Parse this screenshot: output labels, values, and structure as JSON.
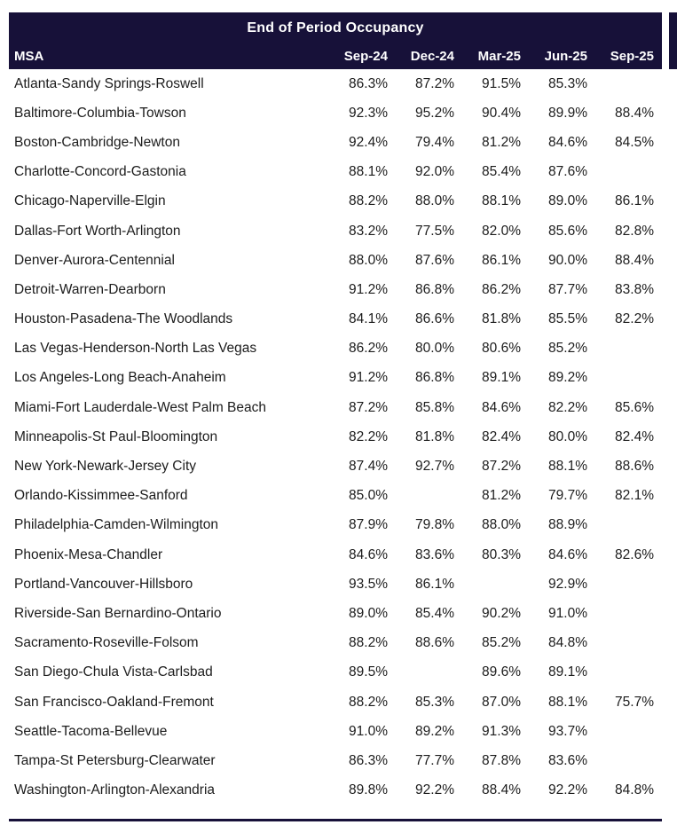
{
  "colors": {
    "header_bg": "#171139",
    "header_text": "#ffffff",
    "body_text": "#1c1c1c",
    "page_bg": "#ffffff"
  },
  "chart_data": {
    "type": "table",
    "title": "End of Period Occupancy",
    "columns": [
      "MSA",
      "Sep-24",
      "Dec-24",
      "Mar-25",
      "Jun-25",
      "Sep-25"
    ],
    "rows": [
      {
        "msa": "Atlanta-Sandy Springs-Roswell",
        "values": [
          "86.3%",
          "87.2%",
          "91.5%",
          "85.3%",
          ""
        ]
      },
      {
        "msa": "Baltimore-Columbia-Towson",
        "values": [
          "92.3%",
          "95.2%",
          "90.4%",
          "89.9%",
          "88.4%"
        ]
      },
      {
        "msa": "Boston-Cambridge-Newton",
        "values": [
          "92.4%",
          "79.4%",
          "81.2%",
          "84.6%",
          "84.5%"
        ]
      },
      {
        "msa": "Charlotte-Concord-Gastonia",
        "values": [
          "88.1%",
          "92.0%",
          "85.4%",
          "87.6%",
          ""
        ]
      },
      {
        "msa": "Chicago-Naperville-Elgin",
        "values": [
          "88.2%",
          "88.0%",
          "88.1%",
          "89.0%",
          "86.1%"
        ]
      },
      {
        "msa": "Dallas-Fort Worth-Arlington",
        "values": [
          "83.2%",
          "77.5%",
          "82.0%",
          "85.6%",
          "82.8%"
        ]
      },
      {
        "msa": "Denver-Aurora-Centennial",
        "values": [
          "88.0%",
          "87.6%",
          "86.1%",
          "90.0%",
          "88.4%"
        ]
      },
      {
        "msa": "Detroit-Warren-Dearborn",
        "values": [
          "91.2%",
          "86.8%",
          "86.2%",
          "87.7%",
          "83.8%"
        ]
      },
      {
        "msa": "Houston-Pasadena-The Woodlands",
        "values": [
          "84.1%",
          "86.6%",
          "81.8%",
          "85.5%",
          "82.2%"
        ]
      },
      {
        "msa": "Las Vegas-Henderson-North Las Vegas",
        "values": [
          "86.2%",
          "80.0%",
          "80.6%",
          "85.2%",
          ""
        ]
      },
      {
        "msa": "Los Angeles-Long Beach-Anaheim",
        "values": [
          "91.2%",
          "86.8%",
          "89.1%",
          "89.2%",
          ""
        ]
      },
      {
        "msa": "Miami-Fort Lauderdale-West Palm Beach",
        "values": [
          "87.2%",
          "85.8%",
          "84.6%",
          "82.2%",
          "85.6%"
        ]
      },
      {
        "msa": "Minneapolis-St Paul-Bloomington",
        "values": [
          "82.2%",
          "81.8%",
          "82.4%",
          "80.0%",
          "82.4%"
        ]
      },
      {
        "msa": "New York-Newark-Jersey City",
        "values": [
          "87.4%",
          "92.7%",
          "87.2%",
          "88.1%",
          "88.6%"
        ]
      },
      {
        "msa": "Orlando-Kissimmee-Sanford",
        "values": [
          "85.0%",
          "",
          "81.2%",
          "79.7%",
          "82.1%"
        ]
      },
      {
        "msa": "Philadelphia-Camden-Wilmington",
        "values": [
          "87.9%",
          "79.8%",
          "88.0%",
          "88.9%",
          ""
        ]
      },
      {
        "msa": "Phoenix-Mesa-Chandler",
        "values": [
          "84.6%",
          "83.6%",
          "80.3%",
          "84.6%",
          "82.6%"
        ]
      },
      {
        "msa": "Portland-Vancouver-Hillsboro",
        "values": [
          "93.5%",
          "86.1%",
          "",
          "92.9%",
          ""
        ]
      },
      {
        "msa": "Riverside-San Bernardino-Ontario",
        "values": [
          "89.0%",
          "85.4%",
          "90.2%",
          "91.0%",
          ""
        ]
      },
      {
        "msa": "Sacramento-Roseville-Folsom",
        "values": [
          "88.2%",
          "88.6%",
          "85.2%",
          "84.8%",
          ""
        ]
      },
      {
        "msa": "San Diego-Chula Vista-Carlsbad",
        "values": [
          "89.5%",
          "",
          "89.6%",
          "89.1%",
          ""
        ]
      },
      {
        "msa": "San Francisco-Oakland-Fremont",
        "values": [
          "88.2%",
          "85.3%",
          "87.0%",
          "88.1%",
          "75.7%"
        ]
      },
      {
        "msa": "Seattle-Tacoma-Bellevue",
        "values": [
          "91.0%",
          "89.2%",
          "91.3%",
          "93.7%",
          ""
        ]
      },
      {
        "msa": "Tampa-St Petersburg-Clearwater",
        "values": [
          "86.3%",
          "77.7%",
          "87.8%",
          "83.6%",
          ""
        ]
      },
      {
        "msa": "Washington-Arlington-Alexandria",
        "values": [
          "89.8%",
          "92.2%",
          "88.4%",
          "92.2%",
          "84.8%"
        ]
      }
    ]
  }
}
